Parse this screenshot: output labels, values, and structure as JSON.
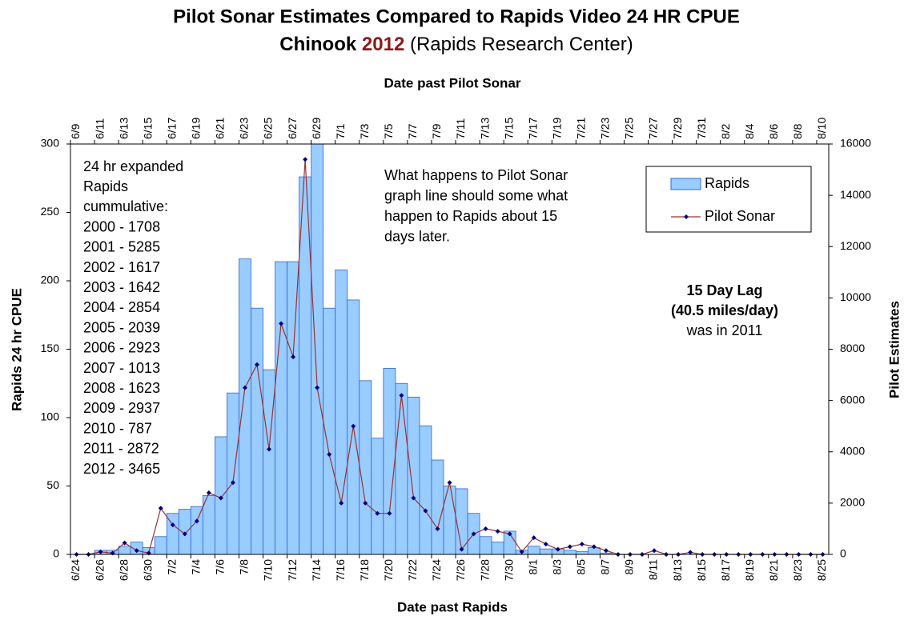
{
  "chart_data": {
    "type": "bar_line",
    "title": "Pilot Sonar Estimates Compared to Rapids Video 24 HR CPUE",
    "subtitle": [
      "Chinook",
      "2012",
      "(Rapids Research Center)"
    ],
    "x_label": "Date past Rapids",
    "x2_label": "Date past Pilot Sonar",
    "y_label": "Rapids 24 hr CPUE",
    "y2_label": "Pilot Estimates",
    "categories": [
      "6/24",
      null,
      "6/26",
      null,
      "6/28",
      null,
      "6/30",
      null,
      "7/2",
      null,
      "7/4",
      null,
      "7/6",
      null,
      "7/8",
      null,
      "7/10",
      null,
      "7/12",
      null,
      "7/14",
      null,
      "7/16",
      null,
      "7/18",
      null,
      "7/20",
      null,
      "7/22",
      null,
      "7/24",
      null,
      "7/26",
      null,
      "7/28",
      null,
      "7/30",
      null,
      "8/1",
      null,
      "8/3",
      null,
      "8/5",
      null,
      "8/7",
      null,
      "8/9",
      null,
      "8/11",
      null,
      "8/13",
      null,
      "8/15",
      null,
      "8/17",
      null,
      "8/19",
      null,
      "8/21",
      null,
      "8/23",
      null,
      "8/25"
    ],
    "top_categories": [
      "6/9",
      null,
      "6/11",
      null,
      "6/13",
      null,
      "6/15",
      null,
      "6/17",
      null,
      "6/19",
      null,
      "6/21",
      null,
      "6/23",
      null,
      "6/25",
      null,
      "6/27",
      null,
      "6/29",
      null,
      "7/1",
      null,
      "7/3",
      null,
      "7/5",
      null,
      "7/7",
      null,
      "7/9",
      null,
      "7/11",
      null,
      "7/13",
      null,
      "7/15",
      null,
      "7/17",
      null,
      "7/19",
      null,
      "7/21",
      null,
      "7/23",
      null,
      "7/25",
      null,
      "7/27",
      null,
      "7/29",
      null,
      "7/31",
      null,
      "8/2",
      null,
      "8/4",
      null,
      "8/6",
      null,
      "8/8",
      null,
      "8/10"
    ],
    "series": [
      {
        "name": "Rapids",
        "type": "bar",
        "color": "#99ccff",
        "edge_color": "#3366cc",
        "values": [
          0,
          0,
          3,
          3,
          6,
          9,
          5,
          13,
          30,
          33,
          35,
          43,
          86,
          118,
          216,
          180,
          135,
          214,
          214,
          276,
          300,
          180,
          208,
          186,
          127,
          85,
          136,
          125,
          115,
          94,
          69,
          50,
          48,
          30,
          13,
          9,
          17,
          3,
          6,
          4,
          4,
          3,
          2,
          5,
          1,
          0,
          0,
          0,
          0,
          0,
          0,
          0,
          0,
          0,
          0,
          0,
          0,
          0,
          0,
          0,
          0,
          0,
          0
        ]
      },
      {
        "name": "Pilot Sonar",
        "type": "line",
        "axis": "y2",
        "color": "#993333",
        "marker_color": "#000080",
        "values": [
          0,
          0,
          100,
          50,
          450,
          150,
          50,
          1800,
          1150,
          800,
          1300,
          2400,
          2200,
          2800,
          6500,
          7400,
          4100,
          9000,
          7700,
          15400,
          6500,
          3900,
          2000,
          5000,
          2000,
          1600,
          1600,
          6200,
          2200,
          1700,
          1000,
          2800,
          200,
          800,
          1000,
          900,
          800,
          100,
          650,
          400,
          200,
          300,
          400,
          300,
          150,
          0,
          0,
          0,
          150,
          0,
          0,
          80,
          0,
          0,
          0,
          0,
          0,
          0,
          0,
          0,
          0,
          0,
          0
        ]
      }
    ],
    "ylim": [
      0,
      300
    ],
    "yticks": [
      0,
      50,
      100,
      150,
      200,
      250,
      300
    ],
    "y2lim": [
      0,
      16000
    ],
    "y2ticks": [
      0,
      2000,
      4000,
      6000,
      8000,
      10000,
      12000,
      14000,
      16000
    ],
    "grid": false,
    "legend": "upper right",
    "annotations": {
      "cumulative": [
        "24 hr expanded",
        "Rapids",
        "cummulative:",
        "2000 - 1708",
        "2001 - 5285",
        "2002 - 1617",
        "2003 - 1642",
        "2004 - 2854",
        "2005 - 2039",
        "2006 - 2923",
        "2007 - 1013",
        "2008 - 1623",
        "2009 - 2937",
        "2010 - 787",
        "2011 - 2872",
        "2012 - 3465"
      ],
      "note": [
        "What happens to Pilot Sonar",
        "graph line should some what",
        "happen to Rapids about 15",
        "days later."
      ],
      "lag": [
        "15 Day Lag",
        "(40.5 miles/day)",
        "was in 2011"
      ]
    }
  }
}
